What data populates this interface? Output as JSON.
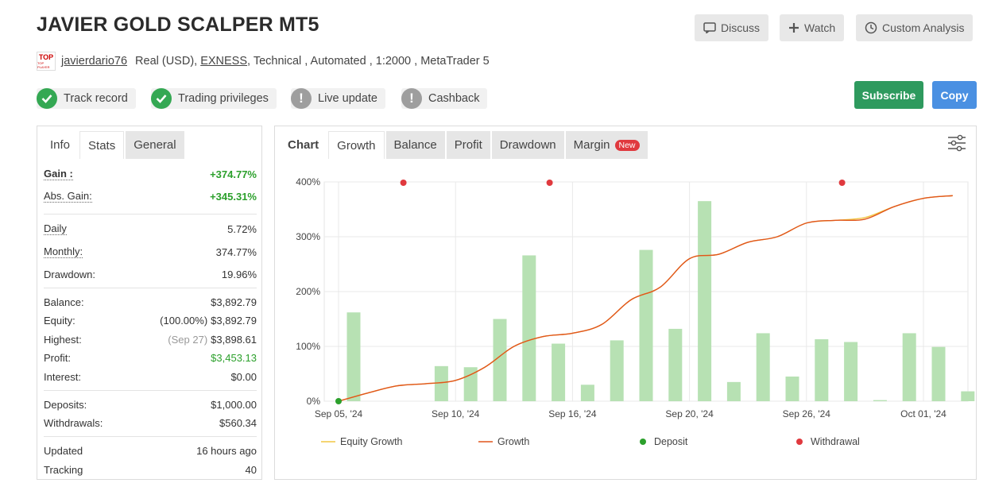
{
  "header": {
    "title": "JAVIER GOLD SCALPER MT5",
    "buttons": {
      "discuss": "Discuss",
      "watch": "Watch",
      "custom_analysis": "Custom Analysis"
    }
  },
  "meta": {
    "avatar_top": "TOP",
    "avatar_sub": "TOP PLAYER",
    "username": "javierdario76",
    "account": "Real (USD),",
    "broker": "EXNESS",
    "rest": ", Technical , Automated , 1:2000 , MetaTrader 5"
  },
  "badges": {
    "track_record": "Track record",
    "trading_privileges": "Trading privileges",
    "live_update": "Live update",
    "cashback": "Cashback"
  },
  "actions": {
    "subscribe": "Subscribe",
    "copy": "Copy"
  },
  "left_tabs": {
    "info": "Info",
    "stats": "Stats",
    "general": "General"
  },
  "stats": {
    "gain_label": "Gain :",
    "gain_value": "+374.77%",
    "abs_gain_label": "Abs. Gain:",
    "abs_gain_value": "+345.31%",
    "daily_label": "Daily",
    "daily_value": "5.72%",
    "monthly_label": "Monthly:",
    "monthly_value": "374.77%",
    "drawdown_label": "Drawdown:",
    "drawdown_value": "19.96%",
    "balance_label": "Balance:",
    "balance_value": "$3,892.79",
    "equity_label": "Equity:",
    "equity_sub": "(100.00%)",
    "equity_value": "$3,892.79",
    "highest_label": "Highest:",
    "highest_sub": "(Sep 27)",
    "highest_value": "$3,898.61",
    "profit_label": "Profit:",
    "profit_value": "$3,453.13",
    "interest_label": "Interest:",
    "interest_value": "$0.00",
    "deposits_label": "Deposits:",
    "deposits_value": "$1,000.00",
    "withdrawals_label": "Withdrawals:",
    "withdrawals_value": "$560.34",
    "updated_label": "Updated",
    "updated_value": "16 hours ago",
    "tracking_label": "Tracking",
    "tracking_value": "40"
  },
  "chart_tabs": {
    "chart": "Chart",
    "growth": "Growth",
    "balance": "Balance",
    "profit": "Profit",
    "drawdown": "Drawdown",
    "margin": "Margin",
    "new_badge": "New"
  },
  "colors": {
    "green_button": "#2e9a5e",
    "blue_button": "#4a90e2",
    "gain_green": "#2ca02c",
    "bar_fill": "#b7e1b3",
    "growth_line": "#e0551c",
    "equity_line": "#f2c744",
    "deposit_dot": "#2ca02c",
    "withdrawal_dot": "#e0393e"
  },
  "chart_data": {
    "type": "bar",
    "ylim": [
      0,
      400
    ],
    "y_ticks": [
      "0%",
      "100%",
      "200%",
      "300%",
      "400%"
    ],
    "x_ticks": [
      "Sep 05, '24",
      "Sep 10, '24",
      "Sep 16, '24",
      "Sep 20, '24",
      "Sep 26, '24",
      "Oct 01, '24"
    ],
    "x_tick_index": [
      0,
      4,
      8,
      12,
      16,
      20
    ],
    "bars": [
      162,
      0,
      0,
      64,
      62,
      150,
      266,
      105,
      30,
      111,
      276,
      132,
      365,
      35,
      124,
      45,
      113,
      108,
      2,
      124,
      99,
      18
    ],
    "growth": [
      0,
      15,
      28,
      32,
      38,
      62,
      100,
      118,
      124,
      140,
      185,
      208,
      260,
      268,
      290,
      300,
      325,
      330,
      332,
      355,
      370,
      375
    ],
    "equity_growth": [
      0,
      15,
      28,
      32,
      38,
      62,
      100,
      118,
      124,
      140,
      185,
      208,
      260,
      268,
      290,
      300,
      325,
      330,
      335,
      355,
      370,
      375
    ],
    "deposits": [
      {
        "index": 0,
        "value": 0
      }
    ],
    "withdrawals": [
      2,
      7,
      17
    ],
    "legend": [
      "Equity Growth",
      "Growth",
      "Deposit",
      "Withdrawal"
    ]
  }
}
